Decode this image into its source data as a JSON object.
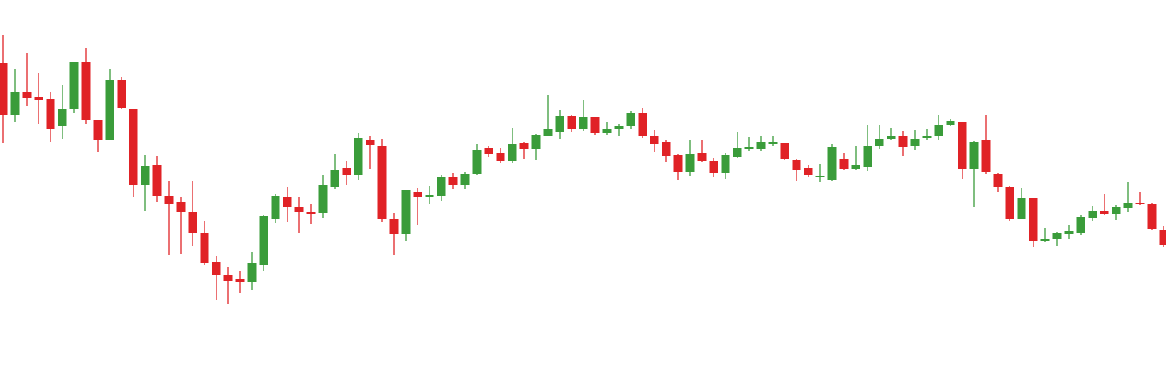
{
  "chart_data": {
    "type": "candlestick",
    "up_color": "#3a9c3a",
    "down_color": "#e02226",
    "open": [
      403,
      337,
      366,
      360,
      358,
      323,
      345,
      404,
      331,
      305,
      382,
      345,
      249,
      274,
      235,
      227,
      214,
      188,
      151,
      134,
      129,
      125,
      147,
      206,
      233,
      220,
      214,
      213,
      246,
      270,
      261,
      306,
      298,
      205,
      186,
      240,
      233,
      235,
      259,
      248,
      262,
      295,
      289,
      279,
      302,
      294,
      311,
      316,
      336,
      319,
      335,
      315,
      319,
      323,
      340,
      311,
      303,
      287,
      265,
      289,
      279,
      264,
      284,
      294,
      294,
      301,
      302,
      280,
      270,
      258,
      255,
      281,
      269,
      271,
      298,
      307,
      310,
      298,
      308,
      310,
      325,
      328,
      269,
      305,
      263,
      246,
      206,
      232,
      178,
      180,
      186,
      187,
      207,
      216,
      212,
      219,
      226,
      225,
      192
    ],
    "high": [
      438,
      396,
      416,
      390,
      367,
      375,
      405,
      422,
      331,
      396,
      385,
      345,
      287,
      285,
      253,
      233,
      253,
      203,
      158,
      145,
      139,
      163,
      211,
      237,
      246,
      233,
      225,
      261,
      288,
      279,
      315,
      311,
      307,
      213,
      242,
      245,
      247,
      261,
      264,
      265,
      301,
      298,
      296,
      321,
      303,
      313,
      362,
      343,
      337,
      356,
      335,
      328,
      326,
      342,
      346,
      318,
      306,
      288,
      306,
      306,
      283,
      289,
      316,
      309,
      311,
      311,
      302,
      282,
      274,
      275,
      300,
      289,
      298,
      324,
      325,
      321,
      317,
      318,
      320,
      337,
      332,
      328,
      304,
      337,
      264,
      247,
      245,
      232,
      194,
      189,
      198,
      210,
      222,
      237,
      223,
      252,
      240,
      226,
      196
    ],
    "low": [
      302,
      328,
      348,
      326,
      303,
      307,
      340,
      326,
      290,
      305,
      345,
      233,
      216,
      227,
      160,
      161,
      171,
      147,
      103,
      98,
      112,
      115,
      140,
      200,
      201,
      188,
      199,
      207,
      244,
      248,
      255,
      269,
      201,
      160,
      178,
      198,
      224,
      228,
      243,
      244,
      261,
      284,
      276,
      276,
      281,
      280,
      310,
      307,
      316,
      317,
      312,
      312,
      311,
      320,
      308,
      290,
      278,
      255,
      260,
      277,
      259,
      256,
      283,
      291,
      292,
      298,
      280,
      254,
      258,
      252,
      253,
      267,
      268,
      266,
      294,
      306,
      285,
      293,
      306,
      306,
      323,
      256,
      221,
      262,
      239,
      203,
      205,
      170,
      176,
      171,
      180,
      185,
      203,
      211,
      204,
      214,
      223,
      191,
      170
    ],
    "close": [
      337,
      367,
      359,
      356,
      320,
      345,
      405,
      331,
      305,
      381,
      346,
      248,
      272,
      234,
      225,
      214,
      188,
      150,
      134,
      127,
      125,
      150,
      209,
      234,
      220,
      214,
      212,
      248,
      268,
      261,
      308,
      299,
      206,
      186,
      242,
      233,
      236,
      259,
      248,
      262,
      293,
      288,
      279,
      301,
      294,
      312,
      320,
      336,
      319,
      335,
      314,
      319,
      323,
      340,
      311,
      301,
      285,
      265,
      288,
      279,
      264,
      286,
      296,
      297,
      303,
      303,
      281,
      268,
      261,
      260,
      297,
      269,
      274,
      298,
      307,
      310,
      297,
      307,
      311,
      325,
      330,
      269,
      303,
      265,
      246,
      206,
      232,
      178,
      180,
      187,
      190,
      208,
      215,
      212,
      220,
      226,
      224,
      193,
      172
    ]
  }
}
